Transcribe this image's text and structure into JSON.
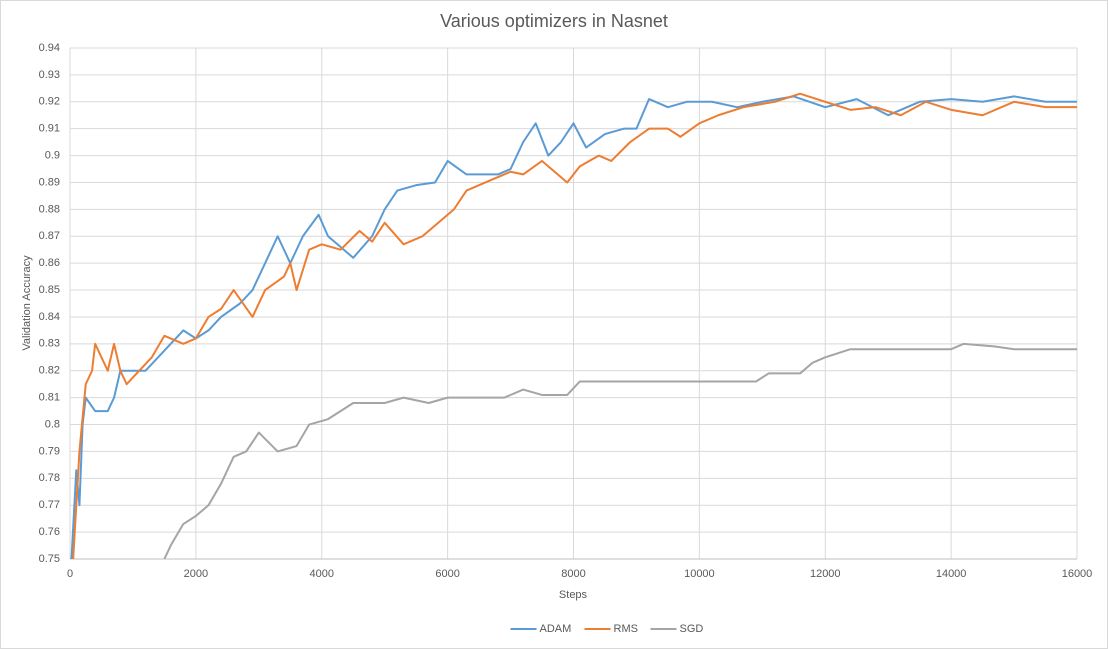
{
  "chart_data": {
    "type": "line",
    "title": "Various optimizers in Nasnet",
    "x_label": "Steps",
    "y_label": "Validation Accuracy",
    "xlim": [
      0,
      16000
    ],
    "xticks": [
      0,
      2000,
      4000,
      6000,
      8000,
      10000,
      12000,
      14000,
      16000
    ],
    "ylim": [
      0.75,
      0.94
    ],
    "yticks": [
      0.75,
      0.76,
      0.77,
      0.78,
      0.79,
      0.8,
      0.81,
      0.82,
      0.83,
      0.84,
      0.85,
      0.86,
      0.87,
      0.88,
      0.89,
      0.9,
      0.91,
      0.92,
      0.93,
      0.94
    ],
    "grid": true,
    "legend": "bottom",
    "series": [
      {
        "name": "ADAM",
        "color": "#5b9bd5",
        "x": [
          0,
          100,
          150,
          200,
          250,
          400,
          600,
          700,
          800,
          1000,
          1200,
          1400,
          1600,
          1800,
          2000,
          2200,
          2400,
          2700,
          2900,
          3100,
          3300,
          3500,
          3700,
          3950,
          4100,
          4300,
          4500,
          4800,
          5000,
          5200,
          5500,
          5800,
          6000,
          6300,
          6800,
          7000,
          7200,
          7400,
          7600,
          7800,
          8000,
          8200,
          8500,
          8800,
          9000,
          9200,
          9500,
          9800,
          10200,
          10600,
          11000,
          11500,
          12000,
          12500,
          13000,
          13500,
          14000,
          14500,
          15000,
          15500,
          16000
        ],
        "values": [
          0.74,
          0.783,
          0.77,
          0.8,
          0.81,
          0.805,
          0.805,
          0.81,
          0.82,
          0.82,
          0.82,
          0.825,
          0.83,
          0.835,
          0.832,
          0.835,
          0.84,
          0.845,
          0.85,
          0.86,
          0.87,
          0.86,
          0.87,
          0.878,
          0.87,
          0.866,
          0.862,
          0.87,
          0.88,
          0.887,
          0.889,
          0.89,
          0.898,
          0.893,
          0.893,
          0.895,
          0.905,
          0.912,
          0.9,
          0.905,
          0.912,
          0.903,
          0.908,
          0.91,
          0.91,
          0.921,
          0.918,
          0.92,
          0.92,
          0.918,
          0.92,
          0.922,
          0.918,
          0.921,
          0.915,
          0.92,
          0.921,
          0.92,
          0.922,
          0.92,
          0.92
        ]
      },
      {
        "name": "RMS",
        "color": "#ed7d31",
        "x": [
          50,
          150,
          250,
          350,
          400,
          500,
          600,
          700,
          800,
          900,
          1100,
          1300,
          1500,
          1800,
          2000,
          2200,
          2400,
          2600,
          2900,
          3100,
          3400,
          3500,
          3600,
          3800,
          4000,
          4300,
          4600,
          4800,
          5000,
          5300,
          5600,
          5900,
          6100,
          6300,
          6600,
          7000,
          7200,
          7500,
          7900,
          8100,
          8400,
          8600,
          8900,
          9200,
          9500,
          9700,
          10000,
          10300,
          10700,
          11200,
          11600,
          12000,
          12400,
          12800,
          13200,
          13600,
          14000,
          14500,
          15000,
          15500,
          16000
        ],
        "values": [
          0.75,
          0.79,
          0.815,
          0.82,
          0.83,
          0.825,
          0.82,
          0.83,
          0.82,
          0.815,
          0.82,
          0.825,
          0.833,
          0.83,
          0.832,
          0.84,
          0.843,
          0.85,
          0.84,
          0.85,
          0.855,
          0.86,
          0.85,
          0.865,
          0.867,
          0.865,
          0.872,
          0.868,
          0.875,
          0.867,
          0.87,
          0.876,
          0.88,
          0.887,
          0.89,
          0.894,
          0.893,
          0.898,
          0.89,
          0.896,
          0.9,
          0.898,
          0.905,
          0.91,
          0.91,
          0.907,
          0.912,
          0.915,
          0.918,
          0.92,
          0.923,
          0.92,
          0.917,
          0.918,
          0.915,
          0.92,
          0.917,
          0.915,
          0.92,
          0.918,
          0.918
        ]
      },
      {
        "name": "SGD",
        "color": "#a5a5a5",
        "x": [
          1500,
          1600,
          1800,
          2000,
          2200,
          2400,
          2600,
          2800,
          3000,
          3300,
          3600,
          3800,
          4100,
          4500,
          5000,
          5300,
          5700,
          6000,
          6500,
          6900,
          7200,
          7500,
          7900,
          8100,
          9000,
          10000,
          10900,
          11100,
          11600,
          11800,
          12000,
          12400,
          13000,
          14000,
          14200,
          14700,
          15000,
          16000
        ],
        "values": [
          0.75,
          0.755,
          0.763,
          0.766,
          0.77,
          0.778,
          0.788,
          0.79,
          0.797,
          0.79,
          0.792,
          0.8,
          0.802,
          0.808,
          0.808,
          0.81,
          0.808,
          0.81,
          0.81,
          0.81,
          0.813,
          0.811,
          0.811,
          0.816,
          0.816,
          0.816,
          0.816,
          0.819,
          0.819,
          0.823,
          0.825,
          0.828,
          0.828,
          0.828,
          0.83,
          0.829,
          0.828,
          0.828
        ]
      }
    ]
  }
}
